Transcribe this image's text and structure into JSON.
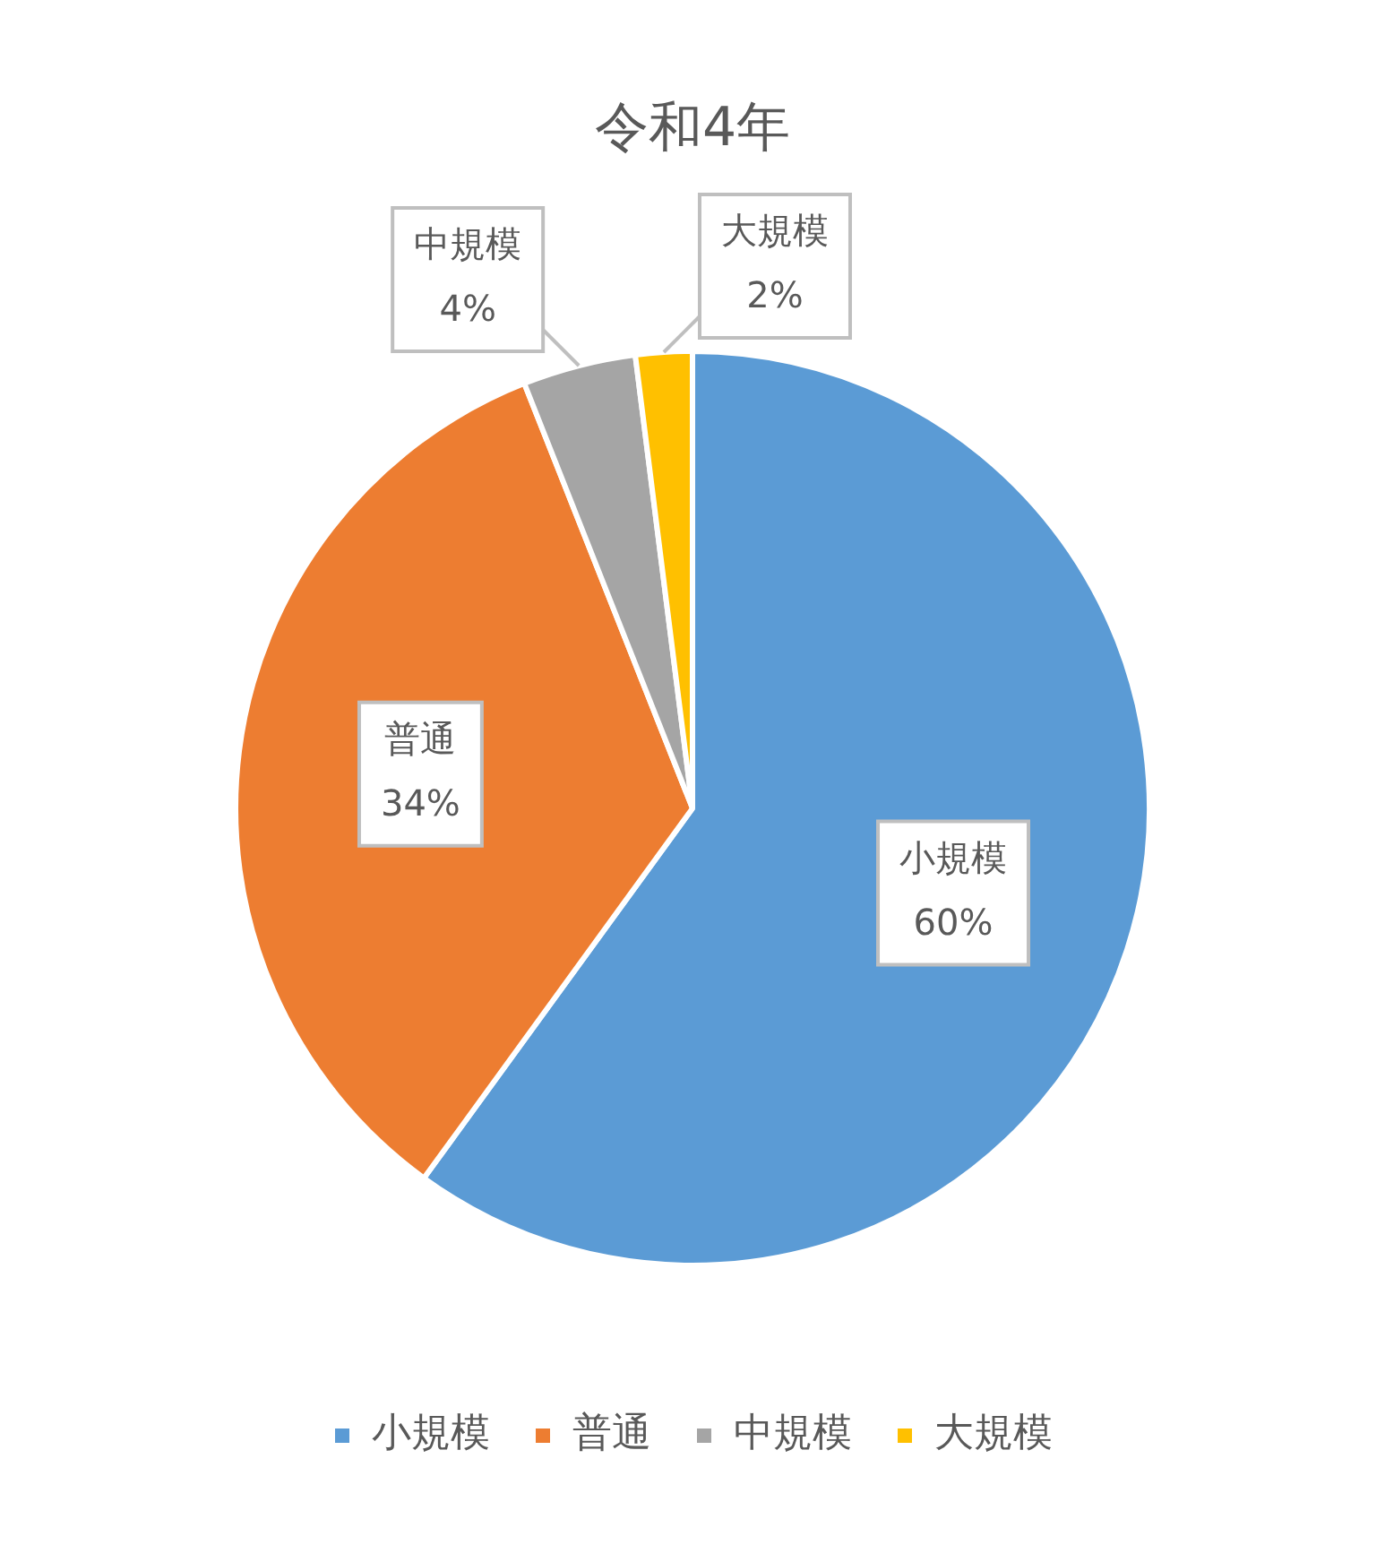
{
  "chart_data": {
    "type": "pie",
    "title": "令和4年",
    "categories": [
      "小規模",
      "普通",
      "中規模",
      "大規模"
    ],
    "values": [
      60,
      34,
      4,
      2
    ],
    "value_labels": [
      "60%",
      "34%",
      "4%",
      "2%"
    ],
    "colors": [
      "#5b9bd5",
      "#ed7d31",
      "#a5a5a5",
      "#ffc000"
    ],
    "legend": "bottom"
  }
}
